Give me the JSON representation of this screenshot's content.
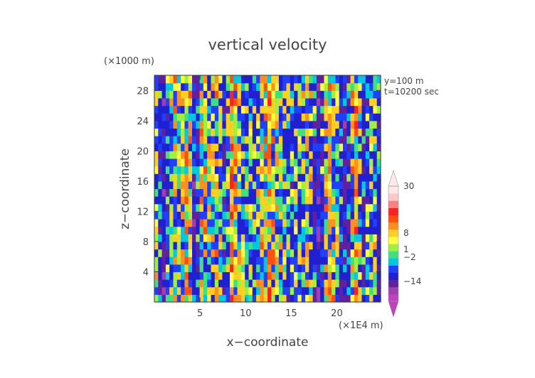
{
  "chart_data": {
    "type": "heatmap",
    "title": "vertical velocity",
    "xlabel": "x−coordinate",
    "ylabel": "z−coordinate",
    "x_scale_label": "(×1E4 m)",
    "y_scale_label": "(×1000 m)",
    "annotations": [
      "y=100 m",
      "t=10200 sec"
    ],
    "xlim": [
      0,
      24.8
    ],
    "ylim": [
      0,
      30
    ],
    "x_ticks": [
      5,
      10,
      15,
      20
    ],
    "x_tick_labels": [
      "5",
      "10",
      "15",
      "20"
    ],
    "y_ticks": [
      4,
      8,
      12,
      16,
      20,
      24,
      28
    ],
    "y_tick_labels": [
      "4",
      "8",
      "12",
      "16",
      "20",
      "24",
      "28"
    ],
    "colorbar": {
      "levels_shown": [
        30,
        8,
        1,
        -2,
        -14
      ],
      "level_labels": [
        "30",
        "8",
        "1",
        "−2",
        "−14"
      ],
      "range": [
        -20,
        40
      ],
      "colors": [
        "#c040c0",
        "#a040b0",
        "#6020a0",
        "#2020d0",
        "#2040ff",
        "#00c8e0",
        "#40e080",
        "#a0f040",
        "#ffff40",
        "#ffd020",
        "#ff9020",
        "#ff5010",
        "#ff2020",
        "#ff8080",
        "#ffc8c8",
        "#ffe8e8"
      ]
    },
    "field": {
      "description_rows": 30,
      "columns": 60,
      "x_profile": [
        {
          "x": 0.0,
          "w": 2.0
        },
        {
          "x": 1.0,
          "w": -6.0
        },
        {
          "x": 2.2,
          "w": 3.0
        },
        {
          "x": 3.0,
          "w": 1.0
        },
        {
          "x": 3.8,
          "w": 6.0
        },
        {
          "x": 4.5,
          "w": -8.0
        },
        {
          "x": 5.2,
          "w": 5.0
        },
        {
          "x": 6.0,
          "w": 0.5
        },
        {
          "x": 7.0,
          "w": 4.0
        },
        {
          "x": 7.8,
          "w": -5.0
        },
        {
          "x": 8.5,
          "w": 6.0
        },
        {
          "x": 9.5,
          "w": 1.0
        },
        {
          "x": 11.0,
          "w": 0.0
        },
        {
          "x": 12.5,
          "w": 5.0
        },
        {
          "x": 14.0,
          "w": 0.5
        },
        {
          "x": 15.0,
          "w": -1.0
        },
        {
          "x": 16.0,
          "w": 0.0
        },
        {
          "x": 17.0,
          "w": 3.0
        },
        {
          "x": 18.0,
          "w": -7.0
        },
        {
          "x": 19.0,
          "w": 5.0
        },
        {
          "x": 20.0,
          "w": 0.5
        },
        {
          "x": 21.0,
          "w": -6.0
        },
        {
          "x": 22.0,
          "w": 6.0
        },
        {
          "x": 23.0,
          "w": -4.0
        },
        {
          "x": 24.0,
          "w": 2.0
        },
        {
          "x": 24.8,
          "w": -5.0
        }
      ]
    }
  }
}
